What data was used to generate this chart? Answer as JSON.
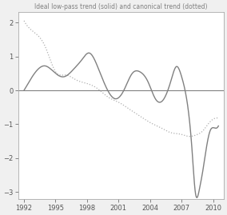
{
  "title": "Ideal low-pass trend (solid) and canonical trend (dotted)",
  "xlim": [
    1991.5,
    2011.0
  ],
  "ylim": [
    -3.2,
    2.3
  ],
  "xticks": [
    1992,
    1995,
    1998,
    2001,
    2004,
    2007,
    2010
  ],
  "yticks": [
    -3,
    -2,
    -1,
    0,
    1,
    2
  ],
  "background_color": "#f0f0f0",
  "plot_bg_color": "#ffffff",
  "solid_color": "#808080",
  "dotted_color": "#b0b0b0",
  "zero_line_color": "#808080",
  "title_color": "#808080",
  "title_fontsize": 5.5
}
